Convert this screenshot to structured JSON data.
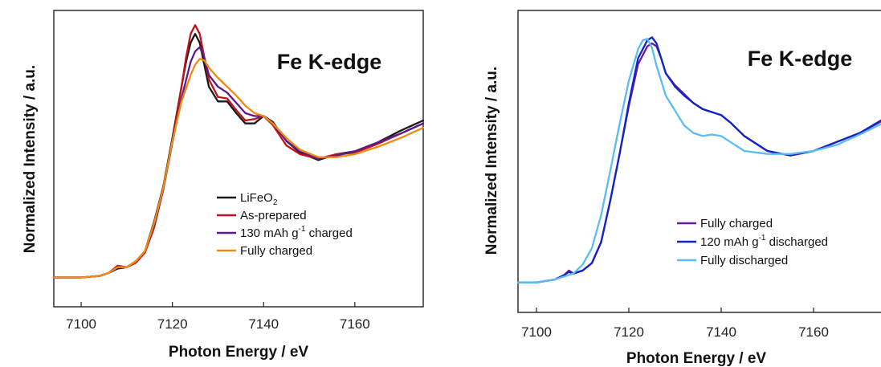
{
  "chart_data": [
    {
      "type": "line",
      "title": "Fe K-edge",
      "xlabel": "Photon Energy / eV",
      "ylabel": "Normalized Intensity / a.u.",
      "xlim": [
        7094,
        7175
      ],
      "ylim": [
        -0.2,
        1.82
      ],
      "xticks": [
        "7100",
        "7120",
        "7140",
        "7160"
      ],
      "grid": false,
      "legend_position": "center-right",
      "series": [
        {
          "name": "LiFeO",
          "name_subscript": "2",
          "color": "#1a1a1a",
          "x": [
            7094,
            7100,
            7104,
            7106,
            7108,
            7110,
            7112,
            7114,
            7116,
            7118,
            7120,
            7122,
            7123,
            7124,
            7125,
            7126,
            7127,
            7128,
            7130,
            7132,
            7134,
            7136,
            7138,
            7140,
            7142,
            7145,
            7148,
            7152,
            7156,
            7160,
            7165,
            7170,
            7175
          ],
          "y": [
            0.0,
            0.0,
            0.01,
            0.03,
            0.06,
            0.07,
            0.11,
            0.18,
            0.38,
            0.62,
            0.95,
            1.3,
            1.47,
            1.6,
            1.66,
            1.6,
            1.45,
            1.3,
            1.2,
            1.2,
            1.12,
            1.05,
            1.05,
            1.1,
            1.06,
            0.93,
            0.85,
            0.8,
            0.84,
            0.86,
            0.92,
            1.0,
            1.07
          ]
        },
        {
          "name": "As-prepared",
          "color": "#c0121a",
          "x": [
            7094,
            7100,
            7104,
            7106,
            7108,
            7110,
            7112,
            7114,
            7116,
            7118,
            7120,
            7122,
            7123,
            7124,
            7125,
            7126,
            7127,
            7128,
            7130,
            7132,
            7134,
            7136,
            7138,
            7140,
            7142,
            7145,
            7148,
            7152,
            7156,
            7160,
            7165,
            7170,
            7175
          ],
          "y": [
            0.0,
            0.0,
            0.01,
            0.03,
            0.08,
            0.07,
            0.1,
            0.17,
            0.34,
            0.6,
            0.93,
            1.3,
            1.5,
            1.66,
            1.72,
            1.66,
            1.5,
            1.35,
            1.23,
            1.22,
            1.14,
            1.07,
            1.08,
            1.1,
            1.04,
            0.9,
            0.84,
            0.81,
            0.84,
            0.85,
            0.91,
            0.98,
            1.05
          ]
        },
        {
          "name": "130 mAh g",
          "name_superscript": "-1",
          "name_suffix": " charged",
          "color": "#5b1a8e",
          "x": [
            7094,
            7100,
            7104,
            7106,
            7108,
            7110,
            7112,
            7114,
            7116,
            7118,
            7120,
            7122,
            7124,
            7125,
            7126,
            7127,
            7128,
            7130,
            7132,
            7134,
            7136,
            7138,
            7140,
            7142,
            7145,
            7148,
            7152,
            7156,
            7160,
            7165,
            7170,
            7175
          ],
          "y": [
            0.0,
            0.0,
            0.01,
            0.03,
            0.07,
            0.07,
            0.11,
            0.18,
            0.36,
            0.6,
            0.92,
            1.22,
            1.47,
            1.54,
            1.57,
            1.5,
            1.38,
            1.3,
            1.26,
            1.19,
            1.12,
            1.1,
            1.1,
            1.05,
            0.93,
            0.86,
            0.81,
            0.83,
            0.86,
            0.92,
            0.98,
            1.05
          ]
        },
        {
          "name": "Fully charged",
          "color": "#f08a10",
          "x": [
            7094,
            7100,
            7104,
            7106,
            7108,
            7110,
            7112,
            7114,
            7116,
            7118,
            7120,
            7122,
            7124,
            7125,
            7126,
            7127,
            7128,
            7130,
            7132,
            7134,
            7136,
            7138,
            7140,
            7142,
            7145,
            7148,
            7152,
            7156,
            7160,
            7165,
            7170,
            7175
          ],
          "y": [
            0.0,
            0.0,
            0.01,
            0.03,
            0.07,
            0.07,
            0.11,
            0.18,
            0.37,
            0.61,
            0.93,
            1.2,
            1.38,
            1.45,
            1.49,
            1.48,
            1.43,
            1.36,
            1.3,
            1.24,
            1.17,
            1.12,
            1.1,
            1.05,
            0.95,
            0.87,
            0.82,
            0.82,
            0.84,
            0.89,
            0.95,
            1.02
          ]
        }
      ]
    },
    {
      "type": "line",
      "title": "Fe K-edge",
      "xlabel": "Photon Energy / eV",
      "ylabel": "Normalized Intensity / a.u.",
      "xlim": [
        7096,
        7176
      ],
      "ylim": [
        -0.2,
        1.82
      ],
      "xticks": [
        "7100",
        "7120",
        "7140",
        "7160"
      ],
      "grid": false,
      "legend_position": "bottom-right",
      "series": [
        {
          "name": "Fully charged",
          "color": "#6a1b9a",
          "x": [
            7096,
            7100,
            7104,
            7106,
            7107,
            7108,
            7110,
            7112,
            7114,
            7116,
            7118,
            7120,
            7122,
            7124,
            7125,
            7126,
            7127,
            7128,
            7130,
            7132,
            7134,
            7136,
            7138,
            7140,
            7142,
            7145,
            7150,
            7155,
            7160,
            7165,
            7170,
            7176
          ],
          "y": [
            0.0,
            0.0,
            0.02,
            0.05,
            0.08,
            0.06,
            0.08,
            0.13,
            0.27,
            0.55,
            0.86,
            1.18,
            1.46,
            1.58,
            1.6,
            1.58,
            1.5,
            1.4,
            1.32,
            1.26,
            1.2,
            1.16,
            1.14,
            1.12,
            1.07,
            0.98,
            0.88,
            0.85,
            0.88,
            0.94,
            1.0,
            1.1
          ]
        },
        {
          "name": "120 mAh g",
          "name_superscript": "-1",
          "name_suffix": " discharged",
          "color": "#1224c8",
          "x": [
            7096,
            7100,
            7104,
            7106,
            7107,
            7108,
            7110,
            7112,
            7114,
            7116,
            7118,
            7120,
            7122,
            7124,
            7125,
            7126,
            7127,
            7128,
            7130,
            7132,
            7134,
            7136,
            7138,
            7140,
            7142,
            7145,
            7150,
            7155,
            7160,
            7165,
            7170,
            7176
          ],
          "y": [
            0.0,
            0.0,
            0.02,
            0.05,
            0.07,
            0.06,
            0.08,
            0.13,
            0.27,
            0.55,
            0.86,
            1.2,
            1.5,
            1.62,
            1.64,
            1.6,
            1.5,
            1.4,
            1.31,
            1.25,
            1.2,
            1.16,
            1.14,
            1.12,
            1.07,
            0.98,
            0.88,
            0.85,
            0.88,
            0.94,
            1.0,
            1.11
          ]
        },
        {
          "name": "Fully discharged",
          "color": "#5cbcf2",
          "x": [
            7096,
            7100,
            7102,
            7104,
            7106,
            7108,
            7110,
            7112,
            7114,
            7116,
            7118,
            7120,
            7122,
            7123,
            7124,
            7125,
            7126,
            7127,
            7128,
            7130,
            7132,
            7134,
            7136,
            7138,
            7140,
            7142,
            7145,
            7150,
            7155,
            7160,
            7165,
            7170,
            7176
          ],
          "y": [
            0.0,
            0.0,
            0.01,
            0.02,
            0.04,
            0.06,
            0.12,
            0.23,
            0.45,
            0.75,
            1.06,
            1.35,
            1.56,
            1.62,
            1.63,
            1.57,
            1.45,
            1.35,
            1.25,
            1.15,
            1.05,
            1.0,
            0.98,
            0.99,
            0.98,
            0.94,
            0.88,
            0.86,
            0.86,
            0.88,
            0.92,
            0.99,
            1.08
          ]
        }
      ]
    }
  ]
}
